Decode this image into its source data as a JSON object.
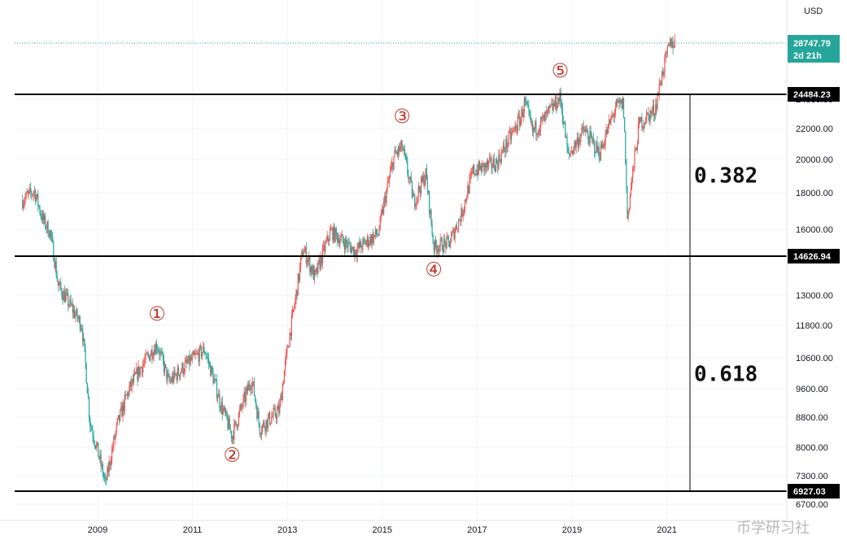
{
  "chart_data": {
    "type": "candlestick",
    "axis_unit_label": "USD",
    "x_tick_labels": [
      "2009",
      "2011",
      "2013",
      "2015",
      "2017",
      "2019",
      "2021"
    ],
    "y_tick_labels": [
      "6700.00",
      "7300.00",
      "8000.00",
      "8800.00",
      "9600.00",
      "10600.00",
      "11800.00",
      "13000.00",
      "16000.00",
      "18000.00",
      "20000.00",
      "22000.00",
      "24000.00"
    ],
    "price_series": {
      "name": "",
      "points": [
        [
          "2007-06",
          17600
        ],
        [
          "2007-09",
          18100
        ],
        [
          "2007-11",
          16600
        ],
        [
          "2008-01",
          15800
        ],
        [
          "2008-03",
          13400
        ],
        [
          "2008-06",
          12600
        ],
        [
          "2008-09",
          11800
        ],
        [
          "2008-11",
          8700
        ],
        [
          "2009-03",
          7100
        ],
        [
          "2009-06",
          8600
        ],
        [
          "2009-09",
          9600
        ],
        [
          "2009-12",
          10300
        ],
        [
          "2010-04",
          11100
        ],
        [
          "2010-07",
          9800
        ],
        [
          "2010-10",
          10200
        ],
        [
          "2011-04",
          10900
        ],
        [
          "2011-08",
          9200
        ],
        [
          "2011-11",
          8300
        ],
        [
          "2012-04",
          9900
        ],
        [
          "2012-06",
          8500
        ],
        [
          "2012-11",
          9000
        ],
        [
          "2013-03",
          12800
        ],
        [
          "2013-05",
          15000
        ],
        [
          "2013-08",
          13700
        ],
        [
          "2013-12",
          15900
        ],
        [
          "2014-06",
          14900
        ],
        [
          "2014-12",
          15800
        ],
        [
          "2015-04",
          20200
        ],
        [
          "2015-06",
          20800
        ],
        [
          "2015-09",
          17500
        ],
        [
          "2015-12",
          19100
        ],
        [
          "2016-02",
          15100
        ],
        [
          "2016-06",
          15300
        ],
        [
          "2016-09",
          16800
        ],
        [
          "2016-12",
          19300
        ],
        [
          "2017-06",
          19800
        ],
        [
          "2017-12",
          22700
        ],
        [
          "2018-01",
          23800
        ],
        [
          "2018-03",
          21800
        ],
        [
          "2018-06",
          22600
        ],
        [
          "2018-10",
          24200
        ],
        [
          "2018-12",
          20200
        ],
        [
          "2019-04",
          21900
        ],
        [
          "2019-08",
          20400
        ],
        [
          "2019-12",
          23400
        ],
        [
          "2020-02",
          23700
        ],
        [
          "2020-03",
          16600
        ],
        [
          "2020-06",
          22300
        ],
        [
          "2020-10",
          23300
        ],
        [
          "2020-12",
          26500
        ],
        [
          "2021-02",
          28900
        ],
        [
          "2021-03",
          28747.79
        ]
      ]
    },
    "horizontal_levels": [
      {
        "value": 24484.23,
        "label": "24484.23"
      },
      {
        "value": 14626.94,
        "label": "14626.94"
      },
      {
        "value": 6927.03,
        "label": "6927.03"
      }
    ],
    "current_price": {
      "value": 28747.79,
      "label": "28747.79",
      "countdown": "2d 21h",
      "color": "#26a69a"
    },
    "fib_ratios": [
      {
        "text": "0.382",
        "between": [
          14626.94,
          24484.23
        ]
      },
      {
        "text": "0.618",
        "between": [
          6927.03,
          14626.94
        ]
      }
    ],
    "wave_labels": [
      {
        "text": "①",
        "date": "2010-04",
        "price": 12000
      },
      {
        "text": "②",
        "date": "2011-11",
        "price": 7650
      },
      {
        "text": "③",
        "date": "2015-06",
        "price": 22400
      },
      {
        "text": "④",
        "date": "2016-02",
        "price": 13800
      },
      {
        "text": "⑤",
        "date": "2018-10",
        "price": 25900
      }
    ],
    "up_color": "#ef5350",
    "down_color": "#26a69a",
    "watermark": "币学研习社"
  }
}
